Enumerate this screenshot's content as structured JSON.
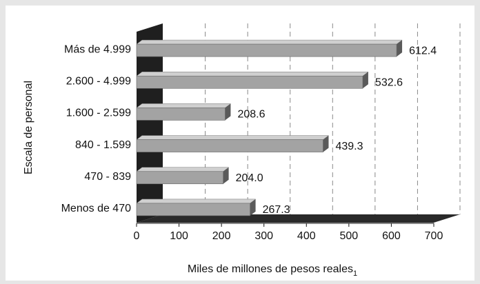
{
  "chart_data": {
    "type": "bar",
    "orientation": "horizontal",
    "categories": [
      "Más de 4.999",
      "2.600 - 4.999",
      "1.600 - 2.599",
      "840 - 1.599",
      "470 - 839",
      "Menos de 470"
    ],
    "values": [
      612.4,
      532.6,
      208.6,
      439.3,
      204.0,
      267.3
    ],
    "data_labels": [
      "612.4",
      "532.6",
      "208.6",
      "439.3",
      "204.0",
      "267.3"
    ],
    "xlabel": "Miles de millones de pesos reales",
    "xlabel_subscript": "1",
    "ylabel": "Escala de personal",
    "xlim": [
      0,
      700
    ],
    "xticks": [
      0,
      100,
      200,
      300,
      400,
      500,
      600,
      700
    ],
    "grid": "vertical-dashed",
    "style": "3d",
    "colors": {
      "bar_front": "#a3a3a3",
      "bar_top": "#cfcfcf",
      "bar_side": "#5a5a5a",
      "wall": "#1f1f1f",
      "floor": "#2a2a2a",
      "plot_bg": "#ffffff",
      "page_bg": "#e6e6e6",
      "grid": "#888888"
    }
  }
}
